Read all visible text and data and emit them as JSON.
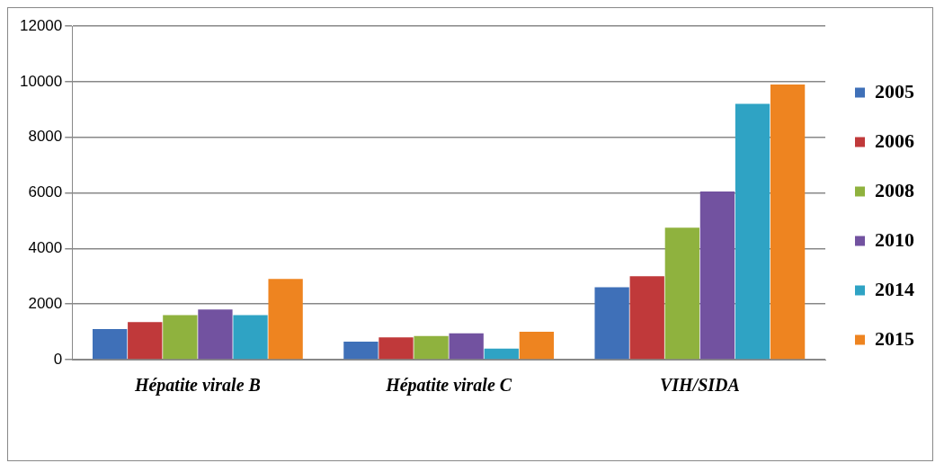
{
  "chart_data": {
    "type": "bar",
    "categories": [
      "Hépatite virale B",
      "Hépatite virale C",
      "VIH/SIDA"
    ],
    "series": [
      {
        "name": "2005",
        "color": "#3f70b8",
        "values": [
          1100,
          650,
          2600
        ]
      },
      {
        "name": "2006",
        "color": "#c0393a",
        "values": [
          1350,
          800,
          3000
        ]
      },
      {
        "name": "2008",
        "color": "#8fb23e",
        "values": [
          1600,
          850,
          4750
        ]
      },
      {
        "name": "2010",
        "color": "#7252a0",
        "values": [
          1800,
          950,
          6050
        ]
      },
      {
        "name": "2014",
        "color": "#2fa3c4",
        "values": [
          1600,
          400,
          9200
        ]
      },
      {
        "name": "2015",
        "color": "#ee8420",
        "values": [
          2900,
          1000,
          9900
        ]
      }
    ],
    "ylim": [
      0,
      12000
    ],
    "yticks": [
      0,
      2000,
      4000,
      6000,
      8000,
      10000,
      12000
    ],
    "grid": "y",
    "legend": "right"
  }
}
